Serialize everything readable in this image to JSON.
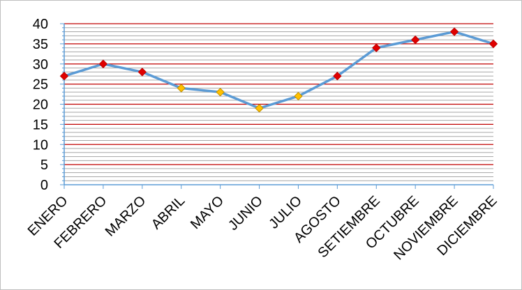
{
  "chart_data": {
    "type": "line",
    "title": "",
    "xlabel": "",
    "ylabel": "",
    "categories": [
      "ENERO",
      "FEBRERO",
      "MARZO",
      "ABRIL",
      "MAYO",
      "JUNIO",
      "JULIO",
      "AGOSTO",
      "SETIEMBRE",
      "OCTUBRE",
      "NOVIEMBRE",
      "DICIEMBRE"
    ],
    "yticks": [
      "0",
      "5",
      "10",
      "15",
      "20",
      "25",
      "30",
      "35",
      "40"
    ],
    "ylim": [
      0,
      40
    ],
    "major_step": 5,
    "minor_step": 1,
    "grid": true,
    "legend": "none",
    "series": [
      {
        "values": [
          27,
          30,
          28,
          24,
          23,
          19,
          22,
          27,
          34,
          36,
          38,
          35
        ],
        "marker_colors": [
          "red",
          "red",
          "red",
          "yellow",
          "yellow",
          "yellow",
          "yellow",
          "red",
          "red",
          "red",
          "red",
          "red"
        ]
      }
    ],
    "colors": {
      "line": "#5b9bd5",
      "major_grid": "#c00000",
      "minor_grid": "#a6a6a6",
      "axis": "#5b9bd5",
      "marker_red": "#e00000",
      "marker_yellow": "#ffc000",
      "marker_edge_red": "#c00000",
      "marker_edge_yellow": "#c09000"
    }
  }
}
